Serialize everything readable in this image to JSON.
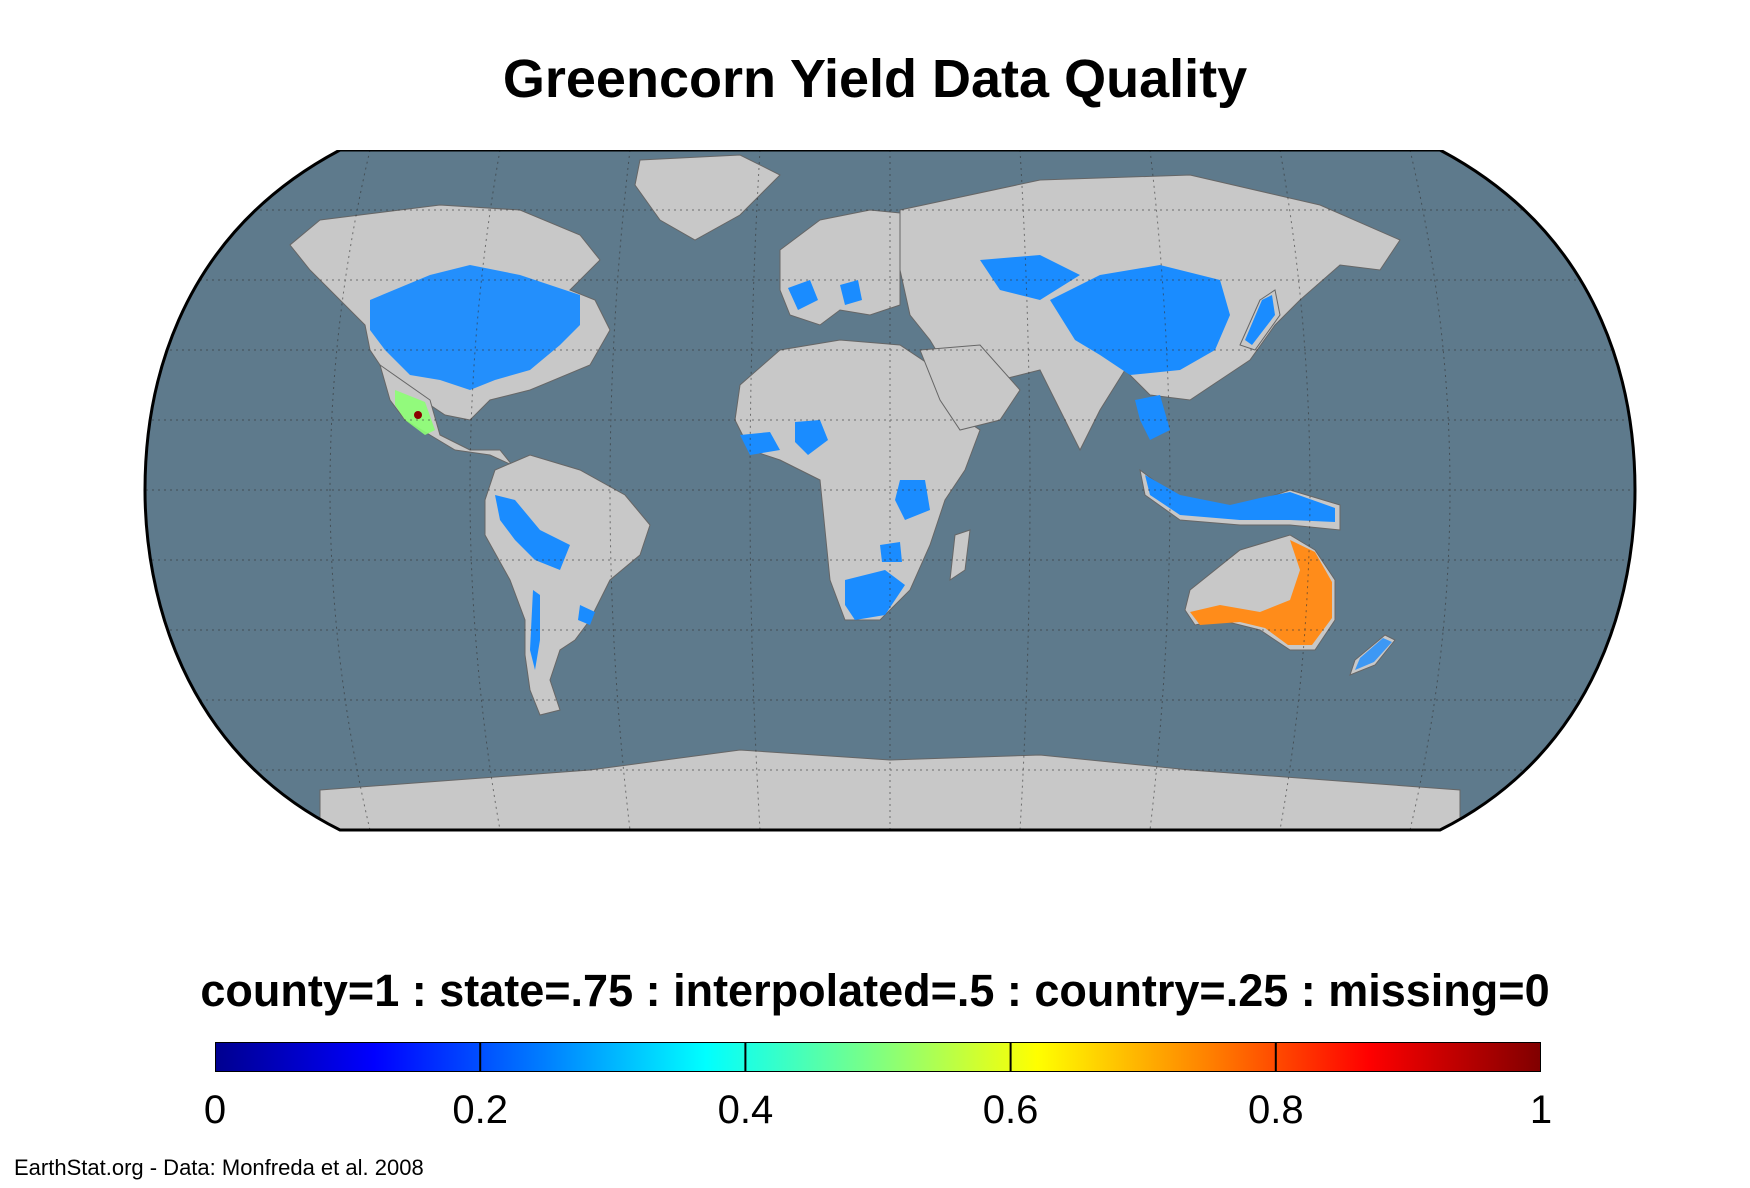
{
  "title": "Greencorn Yield Data Quality",
  "legend_caption": "county=1 : state=.75 : interpolated=.5 : country=.25 : missing=0",
  "colorbar": {
    "min": 0,
    "max": 1,
    "ticks": [
      "0",
      "0.2",
      "0.4",
      "0.6",
      "0.8",
      "1"
    ],
    "colormap": "jet",
    "stops": [
      "#00008f",
      "#0000ff",
      "#0080ff",
      "#00ffff",
      "#80ff80",
      "#ffff00",
      "#ff8000",
      "#ff0000",
      "#800000"
    ]
  },
  "credit": "EarthStat.org - Data: Monfreda et al. 2008",
  "colors": {
    "ocean": "#5e7a8c",
    "land": "#c8c8c8",
    "value_0_25": "#1a8cff",
    "value_0_75": "#ff8c1a",
    "value_0_5": "#8cff73",
    "value_1": "#8b0000"
  },
  "map": {
    "projection": "Robinson",
    "graticule": true,
    "regions": [
      {
        "name": "United States",
        "value": 0.25
      },
      {
        "name": "Mexico",
        "value": 0.5
      },
      {
        "name": "Peru / Bolivia / Paraguay",
        "value": 0.25
      },
      {
        "name": "Chile / Argentina / Uruguay",
        "value": 0.25
      },
      {
        "name": "France",
        "value": 0.25
      },
      {
        "name": "Balkans",
        "value": 0.25
      },
      {
        "name": "West Africa",
        "value": 0.25
      },
      {
        "name": "Nigeria",
        "value": 0.25
      },
      {
        "name": "Tanzania",
        "value": 0.25
      },
      {
        "name": "Zimbabwe / South Africa",
        "value": 0.25
      },
      {
        "name": "Kazakhstan / China",
        "value": 0.25
      },
      {
        "name": "Japan",
        "value": 0.25
      },
      {
        "name": "Southeast Asia",
        "value": 0.25
      },
      {
        "name": "Indonesia / Papua New Guinea",
        "value": 0.25
      },
      {
        "name": "Australia",
        "value": 0.75
      },
      {
        "name": "New Zealand",
        "value": 0.25
      }
    ]
  }
}
